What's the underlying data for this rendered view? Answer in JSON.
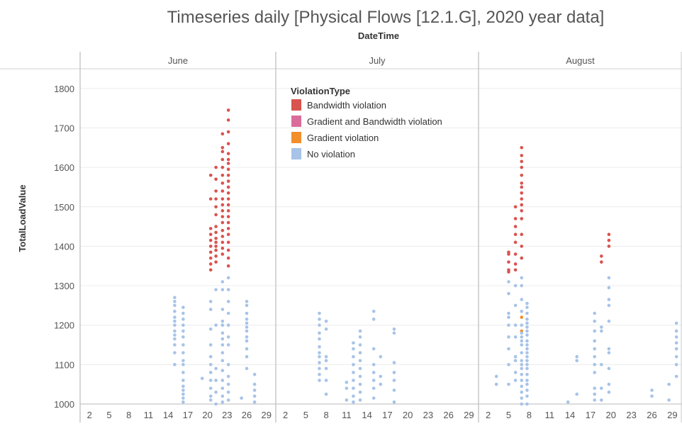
{
  "chart_data": {
    "type": "scatter",
    "title": "Timeseries daily [Physical Flows [12.1.G], 2020 year data]",
    "xlabel": "DateTime",
    "ylabel": "TotalLoadValue",
    "ylim": [
      1000,
      1850
    ],
    "yticks": [
      1000,
      1100,
      1200,
      1300,
      1400,
      1500,
      1600,
      1700,
      1800
    ],
    "grid": true,
    "legend": {
      "title": "ViolationType",
      "placement": "top-left of July panel",
      "entries": [
        {
          "key": "bw",
          "label": "Bandwidth violation",
          "color": "#d9534f"
        },
        {
          "key": "gbw",
          "label": "Gradient and Bandwidth violation",
          "color": "#d96c9a"
        },
        {
          "key": "grad",
          "label": "Gradient violation",
          "color": "#f28e2b"
        },
        {
          "key": "none",
          "label": "No violation",
          "color": "#a7c3e8"
        }
      ]
    },
    "panels": [
      {
        "month": "June",
        "xlim": [
          1,
          30
        ],
        "ticks": [
          "2",
          "5",
          "8",
          "11",
          "14",
          "17",
          "20",
          "23",
          "26",
          "29"
        ],
        "points": [
          {
            "day": 15,
            "type": "none",
            "values": [
              1100,
              1130,
              1150,
              1165,
              1175,
              1185,
              1200,
              1210,
              1220,
              1235,
              1250,
              1260,
              1270
            ]
          },
          {
            "day": 16.3,
            "type": "none",
            "values": [
              1005,
              1015,
              1025,
              1035,
              1045,
              1060,
              1080,
              1100,
              1110,
              1130,
              1150,
              1170,
              1185,
              1200,
              1215,
              1230,
              1245
            ]
          },
          {
            "day": 19.2,
            "type": "none",
            "values": [
              1065
            ]
          },
          {
            "day": 20.5,
            "type": "bw",
            "values": [
              1340,
              1355,
              1370,
              1385,
              1400,
              1415,
              1430,
              1445,
              1520,
              1580
            ]
          },
          {
            "day": 20.5,
            "type": "none",
            "values": [
              1010,
              1020,
              1040,
              1060,
              1080,
              1100,
              1120,
              1150,
              1190,
              1240,
              1260
            ]
          },
          {
            "day": 21.3,
            "type": "bw",
            "values": [
              1360,
              1375,
              1390,
              1400,
              1410,
              1420,
              1435,
              1450,
              1480,
              1500,
              1520,
              1540,
              1570,
              1600
            ]
          },
          {
            "day": 21.3,
            "type": "none",
            "values": [
              1000,
              1030,
              1060,
              1090,
              1200,
              1290
            ]
          },
          {
            "day": 22.3,
            "type": "bw",
            "values": [
              1380,
              1395,
              1410,
              1425,
              1440,
              1460,
              1475,
              1490,
              1505,
              1520,
              1540,
              1560,
              1580,
              1600,
              1620,
              1640,
              1650,
              1685
            ]
          },
          {
            "day": 22.3,
            "type": "none",
            "values": [
              1005,
              1020,
              1040,
              1060,
              1085,
              1110,
              1130,
              1150,
              1165,
              1180,
              1200,
              1210,
              1240,
              1290,
              1310
            ]
          },
          {
            "day": 23.2,
            "type": "bw",
            "values": [
              1350,
              1370,
              1390,
              1410,
              1430,
              1445,
              1460,
              1475,
              1490,
              1505,
              1520,
              1535,
              1550,
              1565,
              1580,
              1595,
              1610,
              1620,
              1635,
              1660,
              1690,
              1720,
              1745
            ]
          },
          {
            "day": 23.2,
            "type": "none",
            "values": [
              1010,
              1030,
              1050,
              1070,
              1100,
              1150,
              1170,
              1200,
              1230,
              1260,
              1290,
              1320
            ]
          },
          {
            "day": 25.2,
            "type": "none",
            "values": [
              1015
            ]
          },
          {
            "day": 26,
            "type": "none",
            "values": [
              1090,
              1120,
              1140,
              1160,
              1170,
              1185,
              1195,
              1205,
              1215,
              1230,
              1250,
              1260
            ]
          },
          {
            "day": 27.2,
            "type": "none",
            "values": [
              1005,
              1020,
              1035,
              1050,
              1075
            ]
          }
        ]
      },
      {
        "month": "July",
        "xlim": [
          1,
          30
        ],
        "ticks": [
          "2",
          "5",
          "8",
          "11",
          "14",
          "17",
          "20",
          "23",
          "26",
          "29"
        ],
        "points": [
          {
            "day": 7,
            "type": "none",
            "values": [
              1060,
              1075,
              1090,
              1105,
              1120,
              1130,
              1145,
              1165,
              1180,
              1200,
              1215,
              1230
            ]
          },
          {
            "day": 8,
            "type": "none",
            "values": [
              1025,
              1060,
              1090,
              1110,
              1120,
              1190,
              1210
            ]
          },
          {
            "day": 11,
            "type": "none",
            "values": [
              1010,
              1040,
              1055
            ]
          },
          {
            "day": 12,
            "type": "none",
            "values": [
              1005,
              1020,
              1040,
              1060,
              1080,
              1100,
              1120,
              1140,
              1155
            ]
          },
          {
            "day": 13,
            "type": "none",
            "values": [
              1010,
              1030,
              1050,
              1070,
              1090,
              1110,
              1130,
              1150,
              1170,
              1185
            ]
          },
          {
            "day": 15,
            "type": "none",
            "values": [
              1015,
              1040,
              1060,
              1080,
              1100,
              1140,
              1215,
              1235
            ]
          },
          {
            "day": 16,
            "type": "none",
            "values": [
              1050,
              1070,
              1120
            ]
          },
          {
            "day": 18,
            "type": "none",
            "values": [
              1005,
              1035,
              1060,
              1080,
              1105,
              1180,
              1190
            ]
          }
        ]
      },
      {
        "month": "August",
        "xlim": [
          1,
          30
        ],
        "ticks": [
          "2",
          "5",
          "8",
          "11",
          "14",
          "17",
          "20",
          "23",
          "26",
          "29"
        ],
        "points": [
          {
            "day": 3.2,
            "type": "none",
            "values": [
              1050,
              1070
            ]
          },
          {
            "day": 5,
            "type": "bw",
            "values": [
              1335,
              1340,
              1360,
              1380,
              1385
            ]
          },
          {
            "day": 5,
            "type": "none",
            "values": [
              1050,
              1100,
              1140,
              1170,
              1200,
              1220,
              1230,
              1280,
              1310
            ]
          },
          {
            "day": 6,
            "type": "bw",
            "values": [
              1340,
              1355,
              1380,
              1410,
              1430,
              1450,
              1470,
              1500
            ]
          },
          {
            "day": 6,
            "type": "none",
            "values": [
              1060,
              1080,
              1110,
              1120,
              1170,
              1200,
              1250,
              1300
            ]
          },
          {
            "day": 6.9,
            "type": "bw",
            "values": [
              1370,
              1400,
              1430,
              1470,
              1490,
              1505,
              1520,
              1535,
              1550,
              1560,
              1580,
              1600,
              1615,
              1630,
              1650
            ]
          },
          {
            "day": 6.9,
            "type": "grad",
            "values": [
              1220,
              1185
            ]
          },
          {
            "day": 6.9,
            "type": "none",
            "values": [
              1000,
              1015,
              1030,
              1045,
              1060,
              1075,
              1090,
              1100,
              1110,
              1130,
              1150,
              1160,
              1170,
              1180,
              1200,
              1235,
              1265,
              1300,
              1320
            ]
          },
          {
            "day": 7.7,
            "type": "none",
            "values": [
              1000,
              1020,
              1035,
              1050,
              1060,
              1075,
              1090,
              1100,
              1110,
              1120,
              1130,
              1140,
              1150,
              1160,
              1175,
              1185,
              1195,
              1205,
              1215,
              1230,
              1245,
              1255
            ]
          },
          {
            "day": 13.7,
            "type": "none",
            "values": [
              1005
            ]
          },
          {
            "day": 15,
            "type": "none",
            "values": [
              1025,
              1110,
              1120
            ]
          },
          {
            "day": 17.6,
            "type": "none",
            "values": [
              1010,
              1025,
              1040,
              1080,
              1100,
              1120,
              1140,
              1160,
              1185,
              1210,
              1230
            ]
          },
          {
            "day": 18.6,
            "type": "bw",
            "values": [
              1360,
              1375
            ]
          },
          {
            "day": 18.6,
            "type": "none",
            "values": [
              1010,
              1040,
              1100,
              1185,
              1195
            ]
          },
          {
            "day": 19.7,
            "type": "bw",
            "values": [
              1400,
              1415,
              1430
            ]
          },
          {
            "day": 19.7,
            "type": "none",
            "values": [
              1030,
              1050,
              1090,
              1130,
              1140,
              1210,
              1250,
              1265,
              1295,
              1320
            ]
          },
          {
            "day": 26,
            "type": "none",
            "values": [
              1020,
              1035
            ]
          },
          {
            "day": 28.5,
            "type": "none",
            "values": [
              1010,
              1050
            ]
          },
          {
            "day": 29.6,
            "type": "none",
            "values": [
              1070,
              1100,
              1120,
              1140,
              1155,
              1170,
              1185,
              1205
            ]
          }
        ]
      }
    ]
  }
}
